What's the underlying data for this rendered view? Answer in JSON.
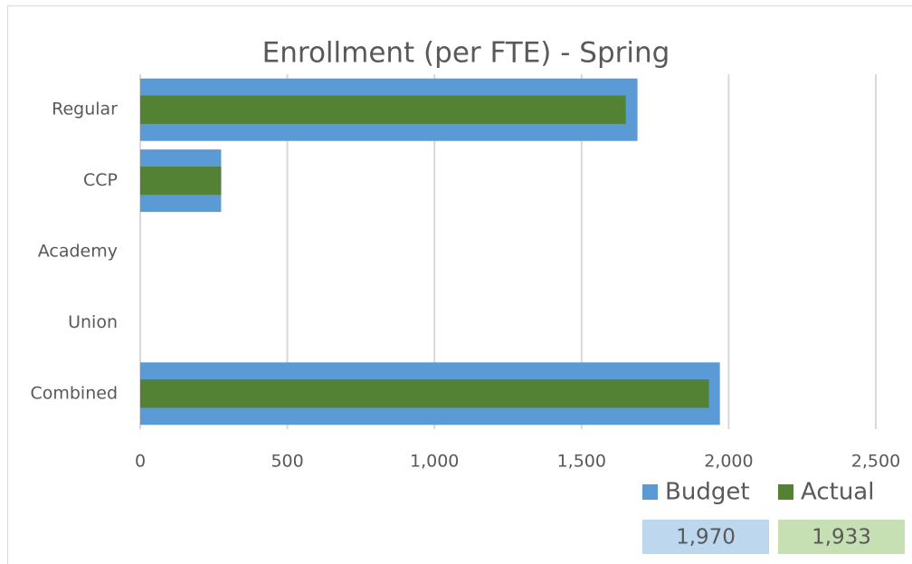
{
  "chart_data": {
    "type": "bar",
    "orientation": "horizontal",
    "title": "Enrollment (per FTE) - Spring",
    "categories": [
      "Regular",
      "CCP",
      "Academy",
      "Union",
      "Combined"
    ],
    "series": [
      {
        "name": "Budget",
        "color": "#5b9bd5",
        "values": [
          1690,
          275,
          0,
          0,
          1970
        ]
      },
      {
        "name": "Actual",
        "color": "#548235",
        "values": [
          1650,
          275,
          0,
          0,
          1933
        ]
      }
    ],
    "xlim": [
      0,
      2500
    ],
    "xticks": [
      0,
      500,
      {
        "value": 1000,
        "label": "1,000"
      },
      {
        "value": 1500,
        "label": "1,500"
      },
      {
        "value": 2000,
        "label": "2,000"
      },
      {
        "value": 2500,
        "label": "2,500"
      }
    ],
    "grid": true,
    "legend": "bottom-right",
    "summary": [
      {
        "value": 1970,
        "label": "1,970",
        "color": "#bdd7ee"
      },
      {
        "value": 1933,
        "label": "1,933",
        "color": "#c6e0b4"
      }
    ]
  }
}
